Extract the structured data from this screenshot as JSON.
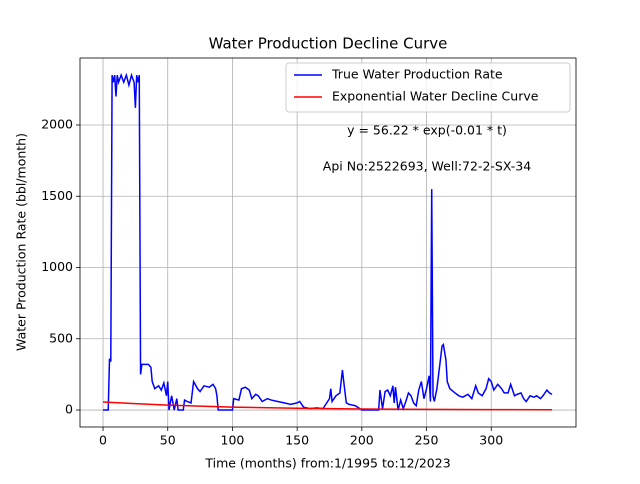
{
  "chart_data": {
    "type": "line",
    "title": "Water Production Decline Curve",
    "xlabel": "Time (months) from:1/1995 to:12/2023",
    "ylabel": "Water Production Rate (bbl/month)",
    "annotations": [
      "y = 56.22 * exp(-0.01 * t)",
      "Api No:2522693, Well:72-2-SX-34"
    ],
    "xlim": [
      -17.8,
      365.5
    ],
    "ylim": [
      -119,
      2470
    ],
    "xticks": [
      0,
      50,
      100,
      150,
      200,
      250,
      300
    ],
    "yticks": [
      0,
      500,
      1000,
      1500,
      2000
    ],
    "grid": true,
    "legend": "upper right",
    "series": [
      {
        "name": "True Water Production Rate",
        "color": "#0000ff",
        "x": [
          0,
          4,
          5,
          6,
          7,
          8,
          9,
          10,
          11,
          12,
          14,
          16,
          18,
          20,
          22,
          24,
          25,
          26,
          27,
          28,
          29,
          30,
          35,
          37,
          38,
          40,
          43,
          45,
          47,
          49,
          50,
          51,
          53,
          55,
          57,
          58,
          62,
          63,
          65,
          68,
          70,
          73,
          75,
          78,
          82,
          85,
          87,
          88,
          89,
          100,
          101,
          105,
          107,
          110,
          113,
          115,
          118,
          120,
          123,
          127,
          130,
          135,
          140,
          145,
          150,
          152,
          155,
          160,
          165,
          170,
          175,
          176,
          177,
          180,
          183,
          185,
          186,
          188,
          190,
          195,
          200,
          213,
          214,
          216,
          218,
          220,
          222,
          224,
          225,
          226,
          228,
          230,
          232,
          234,
          236,
          238,
          240,
          242,
          244,
          246,
          248,
          250,
          252,
          253,
          254,
          255,
          256,
          258,
          260,
          262,
          263,
          265,
          266,
          268,
          272,
          275,
          278,
          282,
          285,
          288,
          290,
          293,
          296,
          298,
          300,
          302,
          305,
          308,
          310,
          313,
          315,
          318,
          320,
          323,
          325,
          327,
          330,
          333,
          335,
          338,
          340,
          343,
          345,
          347
        ],
        "values": [
          0,
          0,
          360,
          340,
          2350,
          2300,
          2350,
          2200,
          2350,
          2300,
          2350,
          2300,
          2350,
          2280,
          2350,
          2300,
          2120,
          2350,
          2300,
          2350,
          250,
          320,
          320,
          300,
          200,
          150,
          170,
          140,
          190,
          100,
          200,
          0,
          100,
          0,
          80,
          0,
          0,
          70,
          60,
          50,
          200,
          150,
          130,
          170,
          160,
          180,
          150,
          100,
          0,
          0,
          80,
          70,
          150,
          160,
          140,
          80,
          110,
          100,
          60,
          80,
          70,
          60,
          50,
          40,
          50,
          60,
          20,
          10,
          15,
          10,
          80,
          150,
          60,
          100,
          120,
          280,
          200,
          50,
          40,
          30,
          0,
          0,
          140,
          10,
          130,
          140,
          100,
          170,
          50,
          160,
          0,
          70,
          10,
          60,
          120,
          100,
          50,
          30,
          140,
          200,
          80,
          150,
          240,
          60,
          1550,
          100,
          60,
          150,
          300,
          450,
          460,
          350,
          200,
          150,
          120,
          100,
          90,
          110,
          80,
          170,
          120,
          100,
          150,
          220,
          200,
          140,
          180,
          150,
          120,
          120,
          180,
          100,
          110,
          120,
          80,
          60,
          100,
          90,
          100,
          80,
          100,
          140,
          120,
          110
        ]
      },
      {
        "name": "Exponential Water Decline Curve",
        "color": "#ff0000",
        "x": [
          0,
          50,
          100,
          150,
          200,
          250,
          300,
          347
        ],
        "values": [
          56.2,
          34.1,
          20.7,
          12.5,
          7.6,
          4.6,
          2.8,
          1.75
        ]
      }
    ]
  }
}
